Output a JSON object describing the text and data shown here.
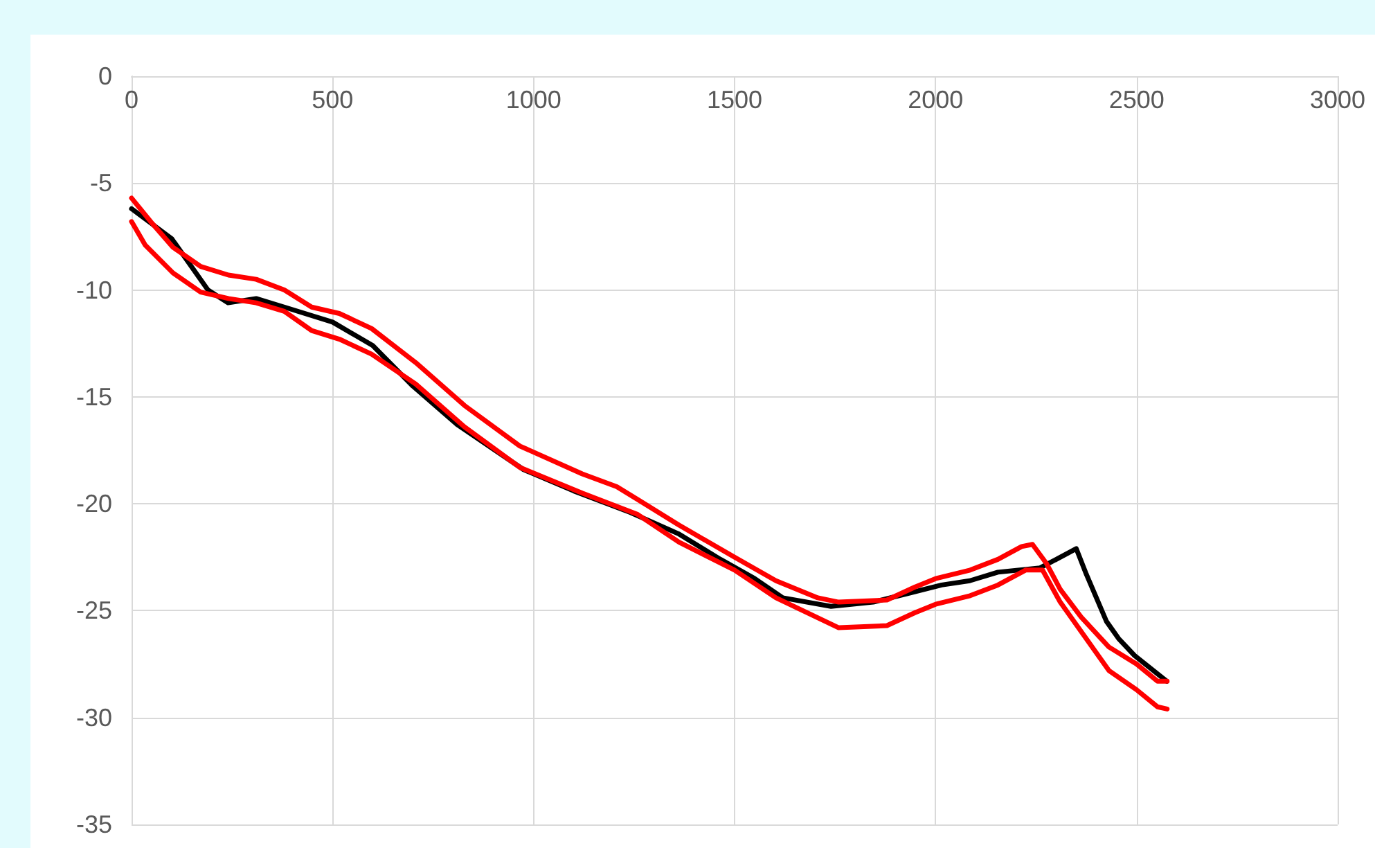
{
  "chart_data": {
    "type": "line",
    "xlim": [
      0,
      3000
    ],
    "xticks": [
      0,
      500,
      1000,
      1500,
      2000,
      2500,
      3000
    ],
    "ylim": [
      -35,
      0
    ],
    "yticks": [
      -35,
      -30,
      -25,
      -20,
      -15,
      -10,
      -5,
      0
    ],
    "grid": true,
    "line_style": "solid",
    "series": [
      {
        "color": "#000000",
        "x": [
          0,
          100,
          190,
          240,
          310,
          380,
          500,
          600,
          700,
          810,
          975,
          1100,
          1240,
          1360,
          1465,
          1550,
          1620,
          1740,
          1845,
          1930,
          2015,
          2085,
          2155,
          2260,
          2330,
          2350,
          2375,
          2425,
          2455,
          2495,
          2575
        ],
        "values": [
          -6.2,
          -7.6,
          -10.0,
          -10.6,
          -10.4,
          -10.8,
          -11.5,
          -12.6,
          -14.5,
          -16.3,
          -18.4,
          -19.4,
          -20.4,
          -21.4,
          -22.6,
          -23.5,
          -24.4,
          -24.8,
          -24.6,
          -24.2,
          -23.8,
          -23.6,
          -23.2,
          -23.0,
          -22.3,
          -22.1,
          -23.3,
          -25.5,
          -26.3,
          -27.1,
          -28.3
        ]
      },
      {
        "color": "#ff0000",
        "x": [
          0,
          52,
          103,
          172,
          241,
          310,
          380,
          448,
          517,
          597,
          707,
          828,
          966,
          1121,
          1207,
          1259,
          1362,
          1500,
          1603,
          1707,
          1759,
          1879,
          1948,
          2000,
          2086,
          2155,
          2214,
          2241,
          2276,
          2310,
          2362,
          2431,
          2500,
          2552,
          2576
        ],
        "values": [
          -5.7,
          -6.9,
          -8.0,
          -8.9,
          -9.3,
          -9.5,
          -10.0,
          -10.8,
          -11.1,
          -11.8,
          -13.4,
          -15.4,
          -17.3,
          -18.6,
          -19.2,
          -19.8,
          -21.0,
          -22.5,
          -23.6,
          -24.4,
          -24.6,
          -24.5,
          -23.9,
          -23.5,
          -23.1,
          -22.6,
          -22.0,
          -21.9,
          -22.8,
          -24.0,
          -25.3,
          -26.7,
          -27.5,
          -28.3,
          -28.3
        ]
      },
      {
        "color": "#ff0000",
        "x": [
          0,
          34,
          103,
          172,
          241,
          310,
          380,
          448,
          517,
          597,
          707,
          828,
          966,
          1121,
          1259,
          1362,
          1500,
          1603,
          1759,
          1879,
          1948,
          2000,
          2086,
          2155,
          2224,
          2266,
          2310,
          2431,
          2500,
          2552,
          2576
        ],
        "values": [
          -6.8,
          -7.9,
          -9.2,
          -10.1,
          -10.4,
          -10.6,
          -11.0,
          -11.9,
          -12.3,
          -13.0,
          -14.4,
          -16.4,
          -18.3,
          -19.5,
          -20.5,
          -21.8,
          -23.1,
          -24.4,
          -25.8,
          -25.7,
          -25.1,
          -24.7,
          -24.3,
          -23.8,
          -23.1,
          -23.1,
          -24.6,
          -27.8,
          -28.7,
          -29.5,
          -29.6
        ]
      }
    ]
  }
}
